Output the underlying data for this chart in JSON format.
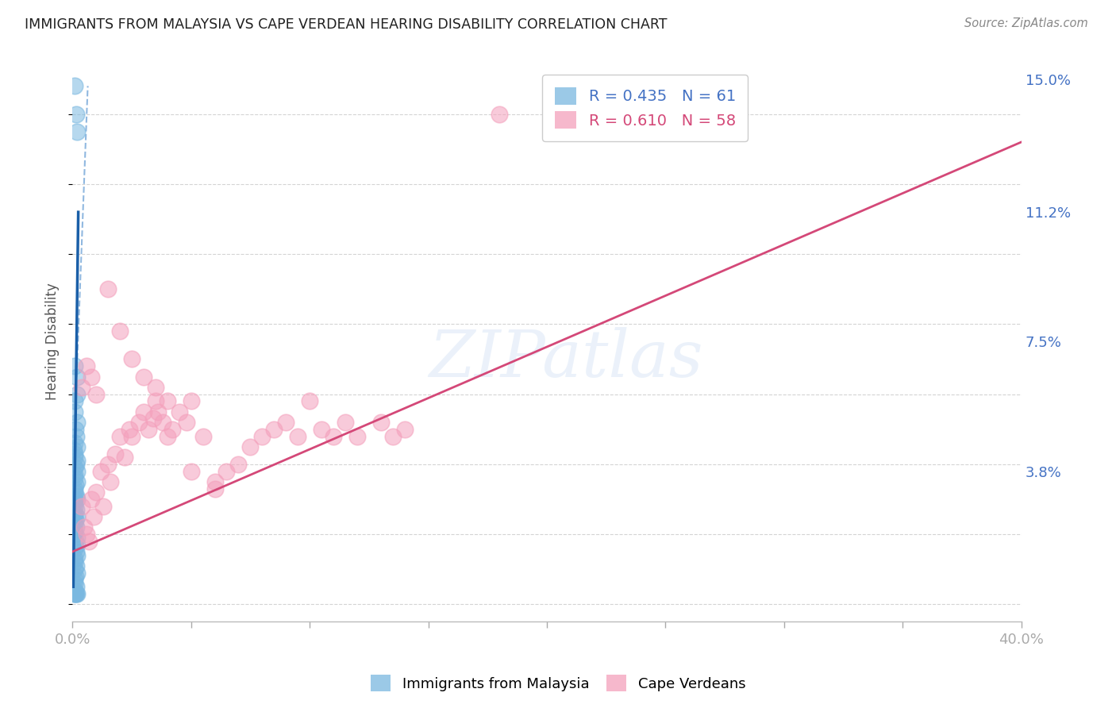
{
  "title": "IMMIGRANTS FROM MALAYSIA VS CAPE VERDEAN HEARING DISABILITY CORRELATION CHART",
  "source": "Source: ZipAtlas.com",
  "ylabel_label": "Hearing Disability",
  "legend_entries": [
    {
      "label": "R = 0.435   N = 61",
      "color": "#a8c8f0"
    },
    {
      "label": "R = 0.610   N = 58",
      "color": "#f0a8c0"
    }
  ],
  "legend_series": [
    "Immigrants from Malaysia",
    "Cape Verdeans"
  ],
  "malaysia_color": "#7ab8e0",
  "cape_verde_color": "#f4a0bc",
  "malaysia_line_color": "#1a5fa8",
  "cape_verde_line_color": "#d44878",
  "dashed_line_color": "#90b8e0",
  "watermark": "ZIPatlas",
  "bg_color": "#ffffff",
  "grid_color": "#d0d0d0",
  "title_color": "#202020",
  "axis_label_color": "#4472c4",
  "xlim": [
    0.0,
    0.4
  ],
  "ylim": [
    -0.005,
    0.155
  ],
  "ytick_vals": [
    0.0,
    0.038,
    0.075,
    0.112,
    0.15
  ],
  "ytick_labels": [
    "",
    "3.8%",
    "7.5%",
    "11.2%",
    "15.0%"
  ],
  "xtick_vals": [
    0.0,
    0.05,
    0.1,
    0.15,
    0.2,
    0.25,
    0.3,
    0.35,
    0.4
  ],
  "xtick_labels_show": [
    "0.0%",
    "",
    "",
    "",
    "",
    "",
    "",
    "",
    "40.0%"
  ],
  "malaysia_x": [
    0.001,
    0.0015,
    0.002,
    0.001,
    0.0018,
    0.002,
    0.0008,
    0.001,
    0.002,
    0.0012,
    0.0015,
    0.001,
    0.002,
    0.0005,
    0.0008,
    0.001,
    0.002,
    0.0015,
    0.001,
    0.0018,
    0.0008,
    0.001,
    0.002,
    0.0012,
    0.0008,
    0.001,
    0.0015,
    0.001,
    0.002,
    0.0008,
    0.001,
    0.0015,
    0.001,
    0.0008,
    0.002,
    0.0012,
    0.001,
    0.0015,
    0.0008,
    0.001,
    0.002,
    0.0012,
    0.0018,
    0.001,
    0.0015,
    0.002,
    0.001,
    0.0008,
    0.0015,
    0.001,
    0.002,
    0.0012,
    0.001,
    0.0008,
    0.0015,
    0.001,
    0.002,
    0.0012,
    0.001,
    0.0015,
    0.0008
  ],
  "malaysia_y": [
    0.148,
    0.14,
    0.135,
    0.068,
    0.065,
    0.06,
    0.058,
    0.055,
    0.052,
    0.05,
    0.048,
    0.046,
    0.045,
    0.044,
    0.043,
    0.042,
    0.041,
    0.04,
    0.039,
    0.038,
    0.037,
    0.036,
    0.035,
    0.034,
    0.033,
    0.032,
    0.031,
    0.03,
    0.03,
    0.029,
    0.028,
    0.027,
    0.026,
    0.025,
    0.025,
    0.024,
    0.023,
    0.022,
    0.021,
    0.02,
    0.019,
    0.018,
    0.017,
    0.016,
    0.015,
    0.014,
    0.013,
    0.012,
    0.011,
    0.01,
    0.009,
    0.008,
    0.007,
    0.006,
    0.005,
    0.004,
    0.003,
    0.003,
    0.003,
    0.003,
    0.003
  ],
  "cape_x": [
    0.004,
    0.005,
    0.006,
    0.007,
    0.008,
    0.009,
    0.01,
    0.012,
    0.013,
    0.015,
    0.016,
    0.018,
    0.02,
    0.022,
    0.024,
    0.025,
    0.028,
    0.03,
    0.032,
    0.034,
    0.035,
    0.036,
    0.038,
    0.04,
    0.042,
    0.045,
    0.048,
    0.05,
    0.055,
    0.06,
    0.065,
    0.07,
    0.075,
    0.08,
    0.085,
    0.09,
    0.095,
    0.1,
    0.105,
    0.11,
    0.115,
    0.12,
    0.13,
    0.135,
    0.14,
    0.18,
    0.004,
    0.006,
    0.008,
    0.01,
    0.015,
    0.02,
    0.025,
    0.03,
    0.035,
    0.04,
    0.05,
    0.06
  ],
  "cape_y": [
    0.028,
    0.022,
    0.02,
    0.018,
    0.03,
    0.025,
    0.032,
    0.038,
    0.028,
    0.04,
    0.035,
    0.043,
    0.048,
    0.042,
    0.05,
    0.048,
    0.052,
    0.055,
    0.05,
    0.053,
    0.058,
    0.055,
    0.052,
    0.048,
    0.05,
    0.055,
    0.052,
    0.058,
    0.048,
    0.035,
    0.038,
    0.04,
    0.045,
    0.048,
    0.05,
    0.052,
    0.048,
    0.058,
    0.05,
    0.048,
    0.052,
    0.048,
    0.052,
    0.048,
    0.05,
    0.14,
    0.062,
    0.068,
    0.065,
    0.06,
    0.09,
    0.078,
    0.07,
    0.065,
    0.062,
    0.058,
    0.038,
    0.033
  ],
  "malaysia_line_x": [
    0.0004,
    0.0025
  ],
  "malaysia_line_y": [
    0.005,
    0.112
  ],
  "cape_line_x": [
    0.0,
    0.4
  ],
  "cape_line_y": [
    0.015,
    0.132
  ],
  "dash_line_x": [
    0.0018,
    0.0065
  ],
  "dash_line_y": [
    0.065,
    0.148
  ]
}
